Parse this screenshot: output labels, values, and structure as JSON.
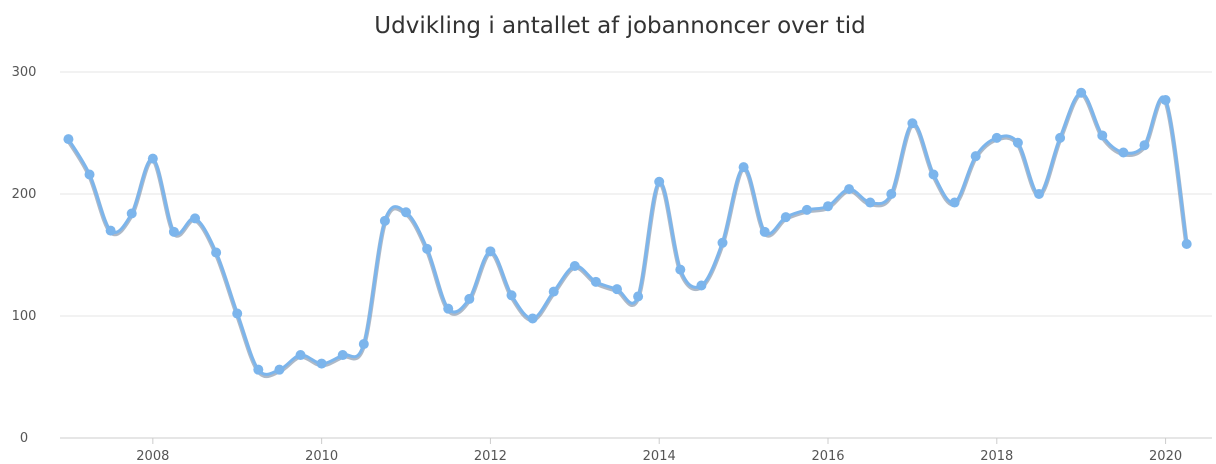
{
  "chart_data": {
    "type": "line",
    "title": "Udvikling i antallet af jobannoncer over tid",
    "xlabel": "",
    "ylabel": "",
    "xlim": [
      2006.9,
      2020.55
    ],
    "ylim": [
      0,
      300
    ],
    "x_ticks": [
      2008,
      2010,
      2012,
      2014,
      2016,
      2018,
      2020
    ],
    "x_tick_labels": [
      "2008",
      "2010",
      "2012",
      "2014",
      "2016",
      "2018",
      "2020"
    ],
    "y_ticks": [
      0,
      100,
      200,
      300
    ],
    "y_tick_labels": [
      "0",
      "100",
      "200",
      "300"
    ],
    "grid": true,
    "legend": "none",
    "colors": {
      "series": "#7cb5ec",
      "gridline": "#e6e6e6",
      "axis": "#cccccc",
      "text": "#333333"
    },
    "series": [
      {
        "x": [
          2007.0,
          2007.25,
          2007.5,
          2007.75,
          2008.0,
          2008.25,
          2008.5,
          2008.75,
          2009.0,
          2009.25,
          2009.5,
          2009.75,
          2010.0,
          2010.25,
          2010.5,
          2010.75,
          2011.0,
          2011.25,
          2011.5,
          2011.75,
          2012.0,
          2012.25,
          2012.5,
          2012.75,
          2013.0,
          2013.25,
          2013.5,
          2013.75,
          2014.0,
          2014.25,
          2014.5,
          2014.75,
          2015.0,
          2015.25,
          2015.5,
          2015.75,
          2016.0,
          2016.25,
          2016.5,
          2016.75,
          2017.0,
          2017.25,
          2017.5,
          2017.75,
          2018.0,
          2018.25,
          2018.5,
          2018.75,
          2019.0,
          2019.25,
          2019.5,
          2019.75,
          2020.0,
          2020.25
        ],
        "values": [
          245,
          216,
          170,
          184,
          229,
          169,
          180,
          152,
          102,
          56,
          56,
          68,
          61,
          68,
          77,
          178,
          185,
          155,
          106,
          114,
          153,
          117,
          98,
          120,
          141,
          128,
          122,
          116,
          210,
          138,
          125,
          160,
          222,
          169,
          181,
          187,
          190,
          204,
          193,
          200,
          258,
          216,
          193,
          231,
          246,
          242,
          200,
          246,
          283,
          248,
          234,
          240,
          277,
          159
        ]
      }
    ]
  }
}
